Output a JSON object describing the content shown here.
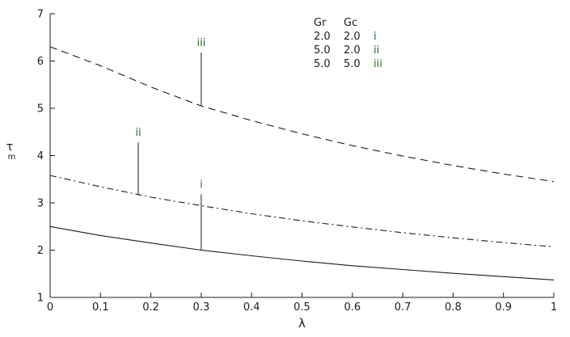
{
  "chart_data": {
    "type": "line",
    "title": "",
    "xlabel": "λ",
    "ylabel": {
      "base": "τ",
      "sub": "m"
    },
    "xlim": [
      0,
      1
    ],
    "ylim": [
      1,
      7
    ],
    "grid": false,
    "x_ticks": [
      0,
      0.1,
      0.2,
      0.3,
      0.4,
      0.5,
      0.6,
      0.7,
      0.8,
      0.9,
      1
    ],
    "x_tick_labels": [
      "0",
      "0.1",
      "0.2",
      "0.3",
      "0.4",
      "0.5",
      "0.6",
      "0.7",
      "0.8",
      "0.9",
      "1"
    ],
    "y_ticks": [
      1,
      2,
      3,
      4,
      5,
      6,
      7
    ],
    "y_tick_labels": [
      "1",
      "2",
      "3",
      "4",
      "5",
      "6",
      "7"
    ],
    "x": [
      0,
      0.1,
      0.2,
      0.3,
      0.4,
      0.5,
      0.6,
      0.7,
      0.8,
      0.9,
      1
    ],
    "series": [
      {
        "name": "i",
        "Gr": "2.0",
        "Gc": "2.0",
        "style": "solid",
        "values": [
          2.5,
          2.31,
          2.15,
          2.0,
          1.88,
          1.77,
          1.67,
          1.59,
          1.51,
          1.44,
          1.37
        ]
      },
      {
        "name": "ii",
        "Gr": "5.0",
        "Gc": "2.0",
        "style": "dashdot",
        "values": [
          3.58,
          3.34,
          3.12,
          2.94,
          2.77,
          2.62,
          2.49,
          2.37,
          2.26,
          2.16,
          2.07
        ]
      },
      {
        "name": "iii",
        "Gr": "5.0",
        "Gc": "5.0",
        "style": "dashed",
        "values": [
          6.3,
          5.9,
          5.45,
          5.05,
          4.74,
          4.46,
          4.21,
          3.99,
          3.79,
          3.61,
          3.45
        ]
      }
    ],
    "annotations": [
      {
        "label": "i",
        "x": 0.3,
        "y_from": 2.0,
        "y_to": 3.18,
        "label_y": 3.32
      },
      {
        "label": "ii",
        "x": 0.175,
        "y_from": 3.16,
        "y_to": 4.28,
        "label_y": 4.42
      },
      {
        "label": "iii",
        "x": 0.3,
        "y_from": 5.05,
        "y_to": 6.18,
        "label_y": 6.32
      }
    ],
    "legend": {
      "position": "top-center",
      "header": [
        "Gr",
        "Gc"
      ],
      "rows": [
        {
          "gr": "2.0",
          "gc": "2.0",
          "tag": "i"
        },
        {
          "gr": "5.0",
          "gc": "2.0",
          "tag": "ii"
        },
        {
          "gr": "5.0",
          "gc": "5.0",
          "tag": "iii"
        }
      ]
    },
    "colors": {
      "line": "#1c1c1c",
      "axis": "#1c1c1c",
      "annotation": "#2a6b2a",
      "background": "#ffffff"
    }
  }
}
